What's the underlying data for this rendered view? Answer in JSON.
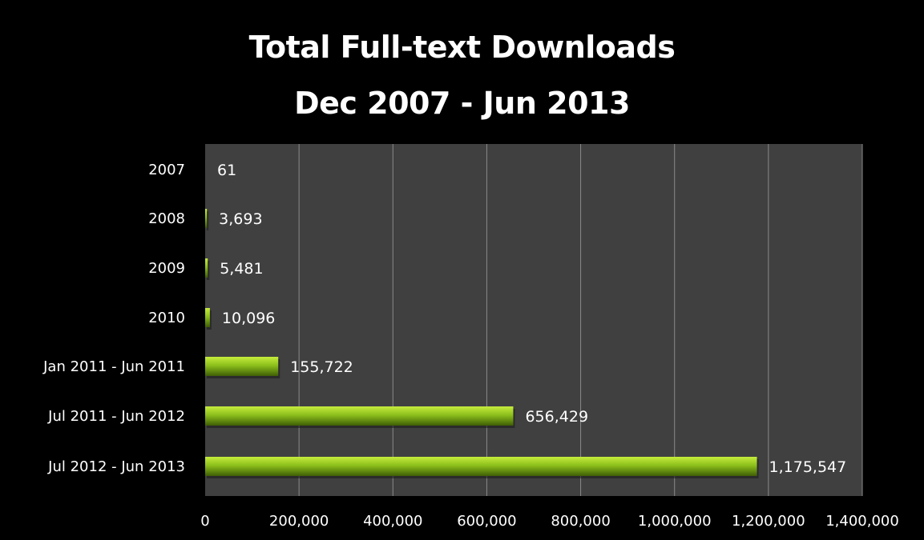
{
  "chart_data": {
    "type": "bar",
    "orientation": "horizontal",
    "title": "Total Full-text Downloads",
    "subtitle": "Dec 2007 - Jun 2013",
    "categories": [
      "2007",
      "2008",
      "2009",
      "2010",
      "Jan 2011 - Jun 2011",
      "Jul 2011 - Jun 2012",
      "Jul 2012 - Jun 2013"
    ],
    "values": [
      61,
      3693,
      5481,
      10096,
      155722,
      656429,
      1175547
    ],
    "data_labels": [
      "61",
      "3,693",
      "5,481",
      "10,096",
      "155,722",
      "656,429",
      "1,175,547"
    ],
    "xlim": [
      0,
      1400000
    ],
    "x_ticks": [
      0,
      200000,
      400000,
      600000,
      800000,
      1000000,
      1200000,
      1400000
    ],
    "x_tick_labels": [
      "0",
      "200,000",
      "400,000",
      "600,000",
      "800,000",
      "1,000,000",
      "1,200,000",
      "1,400,000"
    ],
    "grid": true,
    "legend": "none"
  },
  "colors": {
    "background": "#000000",
    "plot_area": "#404040",
    "gridline": "#8a8a8a",
    "bar_light": "#c6ec3c",
    "bar_mid": "#8cbf1c",
    "bar_dark": "#3f5e06",
    "text": "#ffffff"
  }
}
